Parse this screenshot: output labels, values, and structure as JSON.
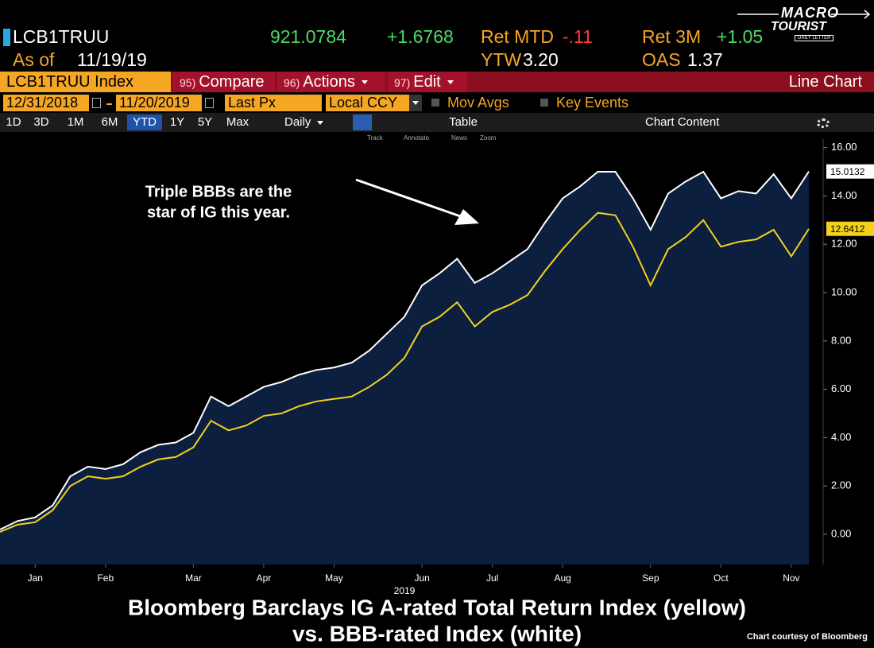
{
  "header": {
    "ticker": "LCB1TRUU",
    "price": "921.0784",
    "change": "+1.6768",
    "ret_mtd_label": "Ret MTD",
    "ret_mtd": "-.11",
    "ret_3m_label": "Ret 3M",
    "ret_3m": "+1.05",
    "as_of_label": "As of",
    "as_of": "11/19/19",
    "ytw_label": "YTW",
    "ytw": "3.20",
    "oas_label": "OAS",
    "oas": "1.37"
  },
  "logo": {
    "line1": "MACRO",
    "line2": "TOURIST",
    "line3": "DAILY LETTER"
  },
  "menu": {
    "security": "LCB1TRUU Index",
    "items": [
      {
        "key": "95)",
        "label": "Compare"
      },
      {
        "key": "96)",
        "label": "Actions"
      },
      {
        "key": "97)",
        "label": "Edit"
      }
    ],
    "view": "Line Chart"
  },
  "controls": {
    "start_date": "12/31/2018",
    "end_date": "11/20/2019",
    "field": "Last Px",
    "currency": "Local CCY",
    "options": [
      "Mov Avgs",
      "Key Events"
    ]
  },
  "periods": [
    "1D",
    "3D",
    "1M",
    "6M",
    "YTD",
    "1Y",
    "5Y",
    "Max"
  ],
  "active_period": "YTD",
  "frequency": "Daily",
  "table": "Table",
  "chart_content": "Chart Content",
  "tools": [
    "Track",
    "Annotate",
    "News",
    "Zoom"
  ],
  "chart_data": {
    "type": "line",
    "title": [
      "Bloomberg Barclays IG A-rated Total Return Index (yellow)",
      "vs. BBB-rated Index (white)"
    ],
    "annotation": [
      "Triple BBBs are the",
      "star of IG this year."
    ],
    "x_axis_year": "2019",
    "categories": [
      null,
      null,
      "Jan",
      null,
      null,
      null,
      "Feb",
      null,
      null,
      null,
      null,
      "Mar",
      null,
      null,
      null,
      "Apr",
      null,
      null,
      null,
      "May",
      null,
      null,
      null,
      null,
      "Jun",
      null,
      null,
      null,
      "Jul",
      null,
      null,
      null,
      "Aug",
      null,
      null,
      null,
      null,
      "Sep",
      null,
      null,
      null,
      "Oct",
      null,
      null,
      null,
      "Nov",
      null
    ],
    "series": [
      {
        "color": "#ffffff",
        "values": [
          0.2,
          0.55,
          0.7,
          1.2,
          2.4,
          2.8,
          2.7,
          2.9,
          3.4,
          3.7,
          3.8,
          4.2,
          5.7,
          5.3,
          5.7,
          6.1,
          6.3,
          6.6,
          6.8,
          6.9,
          7.1,
          7.6,
          8.3,
          9.0,
          10.3,
          10.8,
          11.4,
          10.4,
          10.8,
          11.3,
          11.8,
          12.9,
          13.9,
          14.4,
          15.0,
          15.0,
          13.9,
          12.6,
          14.1,
          14.6,
          15.0,
          13.9,
          14.2,
          14.1,
          14.9,
          13.9,
          15.0132
        ]
      },
      {
        "color": "#f2d21b",
        "values": [
          0.1,
          0.4,
          0.5,
          1.0,
          2.0,
          2.4,
          2.3,
          2.4,
          2.8,
          3.1,
          3.2,
          3.6,
          4.7,
          4.3,
          4.5,
          4.9,
          5.0,
          5.3,
          5.5,
          5.6,
          5.7,
          6.1,
          6.6,
          7.3,
          8.6,
          9.0,
          9.6,
          8.6,
          9.2,
          9.5,
          9.9,
          10.9,
          11.8,
          12.6,
          13.3,
          13.2,
          11.9,
          10.3,
          11.8,
          12.3,
          13.0,
          11.9,
          12.1,
          12.2,
          12.6,
          11.5,
          12.6412
        ]
      }
    ],
    "area_color": "#0c1f3f",
    "ylim": [
      -1.25,
      16.35
    ],
    "yticks": [
      {
        "value": 0,
        "label": "0.00"
      },
      {
        "value": 2,
        "label": "2.00"
      },
      {
        "value": 4,
        "label": "4.00"
      },
      {
        "value": 6,
        "label": "6.00"
      },
      {
        "value": 8,
        "label": "8.00"
      },
      {
        "value": 10,
        "label": "10.00"
      },
      {
        "value": 12,
        "label": "12.00"
      },
      {
        "value": 14,
        "label": "14.00"
      },
      {
        "value": 16,
        "label": "16.00"
      }
    ]
  },
  "credit": "Chart courtesy of Bloomberg"
}
